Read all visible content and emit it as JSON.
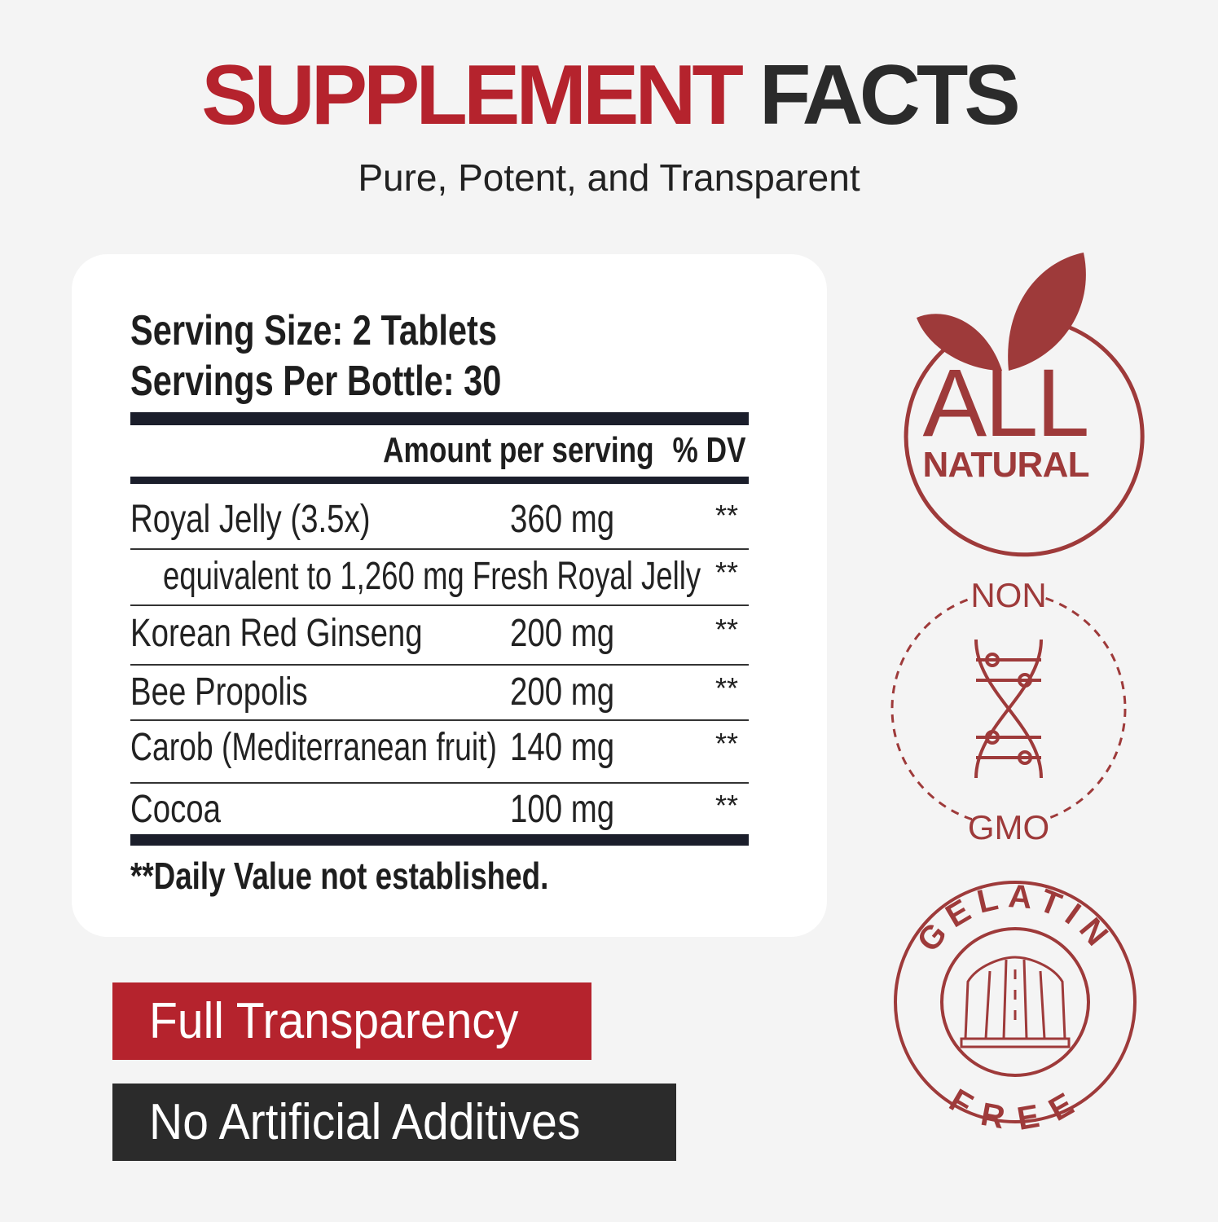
{
  "header": {
    "title_red": "SUPPLEMENT",
    "title_dark": "FACTS",
    "subtitle": "Pure, Potent, and Transparent"
  },
  "facts": {
    "serving_size": "Serving Size: 2 Tablets",
    "servings_per": "Servings Per Bottle: 30",
    "col_amount": "Amount per serving",
    "col_dv": "% DV",
    "rows": [
      {
        "name": "Royal Jelly (3.5x)",
        "amount": "360 mg",
        "dv": "**"
      },
      {
        "name": "equivalent to 1,260 mg Fresh Royal Jelly",
        "amount": "",
        "dv": "**"
      },
      {
        "name": "Korean Red Ginseng",
        "amount": "200 mg",
        "dv": "**"
      },
      {
        "name": "Bee Propolis",
        "amount": "200 mg",
        "dv": "**"
      },
      {
        "name": "Carob (Mediterranean fruit)",
        "amount": "140 mg",
        "dv": "**"
      },
      {
        "name": "Cocoa",
        "amount": "100 mg",
        "dv": "**"
      }
    ],
    "footnote": "**Daily Value not established."
  },
  "labels": {
    "full_transparency": "Full Transparency",
    "no_additives": "No Artificial Additives"
  },
  "badges": {
    "all_natural": {
      "line1": "ALL",
      "line2": "NATURAL",
      "icon": "leaf-icon"
    },
    "non_gmo": {
      "top": "NON",
      "bottom": "GMO",
      "icon": "dna-icon"
    },
    "gelatin_free": {
      "top": "GELATIN",
      "bottom": "FREE",
      "icon": "gelatin-mold-icon"
    }
  },
  "colors": {
    "brand_red": "#b5232d",
    "dark": "#2b2b2b",
    "badge_red": "#9e3a3a",
    "label_red": "#b5232d",
    "label_dark": "#2b2b2b"
  }
}
